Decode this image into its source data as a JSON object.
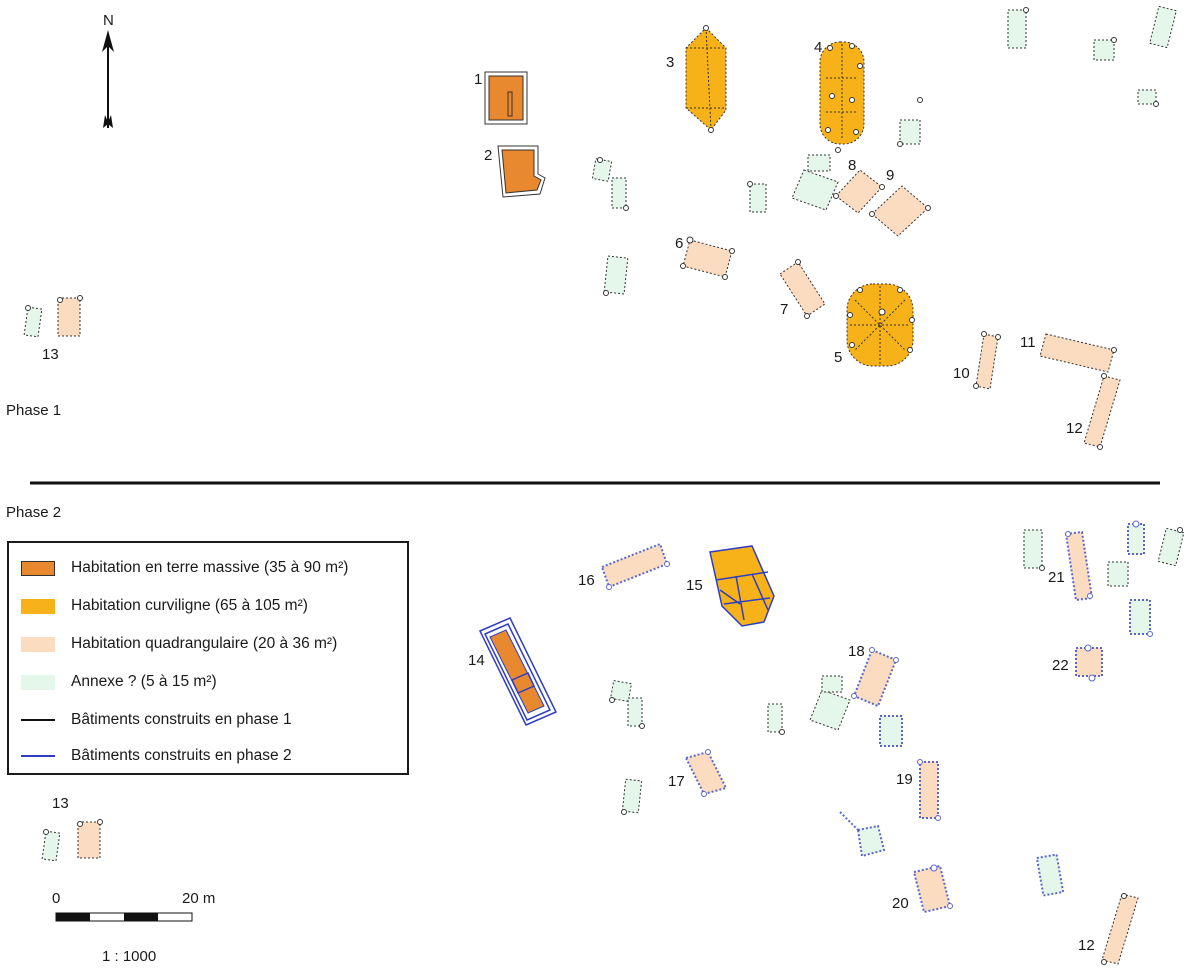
{
  "north_label": "N",
  "phases": {
    "phase1": "Phase 1",
    "phase2": "Phase 2"
  },
  "colors": {
    "terre_massive": "#e8892f",
    "curviligne": "#f7b21a",
    "quadrangulaire": "#fbdcc0",
    "annexe": "#e4f7ea",
    "phase1_line": "#111111",
    "phase2_line": "#2e3ec2",
    "phase2_dot": "#5a66d0"
  },
  "buildings_phase1": [
    {
      "id": "1",
      "label": "1",
      "type": "terre_massive"
    },
    {
      "id": "2",
      "label": "2",
      "type": "terre_massive"
    },
    {
      "id": "3",
      "label": "3",
      "type": "curviligne"
    },
    {
      "id": "4",
      "label": "4",
      "type": "curviligne"
    },
    {
      "id": "5",
      "label": "5",
      "type": "curviligne"
    },
    {
      "id": "6",
      "label": "6",
      "type": "quadrangulaire"
    },
    {
      "id": "7",
      "label": "7",
      "type": "quadrangulaire"
    },
    {
      "id": "8",
      "label": "8",
      "type": "quadrangulaire"
    },
    {
      "id": "9",
      "label": "9",
      "type": "quadrangulaire"
    },
    {
      "id": "10",
      "label": "10",
      "type": "quadrangulaire"
    },
    {
      "id": "11",
      "label": "11",
      "type": "quadrangulaire"
    },
    {
      "id": "12",
      "label": "12",
      "type": "quadrangulaire"
    },
    {
      "id": "13",
      "label": "13",
      "type": "quadrangulaire"
    }
  ],
  "buildings_phase2": [
    {
      "id": "12",
      "label": "12",
      "type": "quadrangulaire"
    },
    {
      "id": "13",
      "label": "13",
      "type": "quadrangulaire"
    },
    {
      "id": "14",
      "label": "14",
      "type": "terre_massive"
    },
    {
      "id": "15",
      "label": "15",
      "type": "curviligne"
    },
    {
      "id": "16",
      "label": "16",
      "type": "quadrangulaire"
    },
    {
      "id": "17",
      "label": "17",
      "type": "quadrangulaire"
    },
    {
      "id": "18",
      "label": "18",
      "type": "quadrangulaire"
    },
    {
      "id": "19",
      "label": "19",
      "type": "quadrangulaire"
    },
    {
      "id": "20",
      "label": "20",
      "type": "quadrangulaire"
    },
    {
      "id": "21",
      "label": "21",
      "type": "quadrangulaire"
    },
    {
      "id": "22",
      "label": "22",
      "type": "quadrangulaire"
    }
  ],
  "legend": {
    "items": [
      {
        "label": "Habitation en terre massive (35 à 90 m²)",
        "swatch": "terre_massive"
      },
      {
        "label": "Habitation curviligne (65 à 105 m²)",
        "swatch": "curviligne"
      },
      {
        "label": "Habitation quadrangulaire (20 à 36 m²)",
        "swatch": "quadrangulaire"
      },
      {
        "label": "Annexe ? (5 à 15 m²)",
        "swatch": "annexe"
      },
      {
        "label": "Bâtiments construits en phase 1",
        "swatch": "phase1_line"
      },
      {
        "label": "Bâtiments construits en phase 2",
        "swatch": "phase2_line"
      }
    ]
  },
  "scale": {
    "start": "0",
    "end": "20 m",
    "ratio": "1 : 1000"
  }
}
